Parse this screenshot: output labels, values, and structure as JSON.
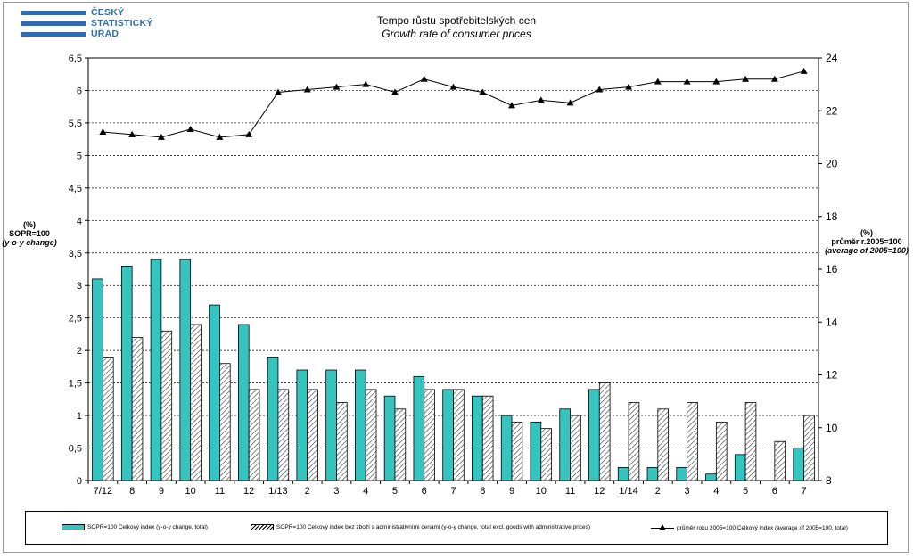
{
  "logo": {
    "line1": "ČESKÝ",
    "line2": "STATISTICKÝ",
    "line3": "ÚŘAD"
  },
  "colors": {
    "bar_total": "#35c4c0",
    "bar_excl": "hatched",
    "line": "#000000",
    "logo": "#2d6db5"
  },
  "chart_data": {
    "type": "bar",
    "title": "Tempo růstu spotřebitelských  cen",
    "subtitle": "Growth rate  of consumer prices",
    "left_axis": {
      "label_lines": [
        "(%)",
        "SOPR=100",
        "(y-o-y change)"
      ],
      "min": 0,
      "max": 6.5,
      "step": 0.5,
      "ticks": [
        "0",
        "0,5",
        "1",
        "1,5",
        "2",
        "2,5",
        "3",
        "3,5",
        "4",
        "4,5",
        "5",
        "5,5",
        "6",
        "6,5"
      ]
    },
    "right_axis": {
      "label_lines": [
        "(%)",
        "průměr r.2005=100",
        "(average of 2005=100)"
      ],
      "min": 8,
      "max": 24,
      "step": 2,
      "ticks": [
        "8",
        "10",
        "12",
        "14",
        "16",
        "18",
        "20",
        "22",
        "24"
      ]
    },
    "grid": true,
    "categories": [
      "7/12",
      "8",
      "9",
      "10",
      "11",
      "12",
      "1/13",
      "2",
      "3",
      "4",
      "5",
      "6",
      "7",
      "8",
      "9",
      "10",
      "11",
      "12",
      "1/14",
      "2",
      "3",
      "4",
      "5",
      "6",
      "7"
    ],
    "series": [
      {
        "name": "SOPR=100 Celkový index (y-o-y change, total)",
        "axis": "left",
        "type": "bar",
        "values": [
          3.1,
          3.3,
          3.4,
          3.4,
          2.7,
          2.4,
          1.9,
          1.7,
          1.7,
          1.7,
          1.3,
          1.6,
          1.4,
          1.3,
          1.0,
          0.9,
          1.1,
          1.4,
          0.2,
          0.2,
          0.2,
          0.1,
          0.4,
          0.0,
          0.5
        ]
      },
      {
        "name": "SOPR=100 Celkový index bez zboží s administrativními cenami (y-o-y change, total excl. goods with administrative prices)",
        "axis": "left",
        "type": "bar",
        "values": [
          1.9,
          2.2,
          2.3,
          2.4,
          1.8,
          1.4,
          1.4,
          1.4,
          1.2,
          1.4,
          1.1,
          1.4,
          1.4,
          1.3,
          0.9,
          0.8,
          1.0,
          1.5,
          1.2,
          1.1,
          1.2,
          0.9,
          1.2,
          0.6,
          1.0
        ]
      },
      {
        "name": "průměr roku 2005=100 Celkový index (average of 2005=100, total)",
        "axis": "right",
        "type": "line",
        "values": [
          21.2,
          21.1,
          21.0,
          21.3,
          21.0,
          21.1,
          22.7,
          22.8,
          22.9,
          23.0,
          22.7,
          23.2,
          22.9,
          22.7,
          22.2,
          22.4,
          22.3,
          22.8,
          22.9,
          23.1,
          23.1,
          23.1,
          23.2,
          23.2,
          23.5
        ]
      }
    ],
    "legend_position": "bottom"
  }
}
